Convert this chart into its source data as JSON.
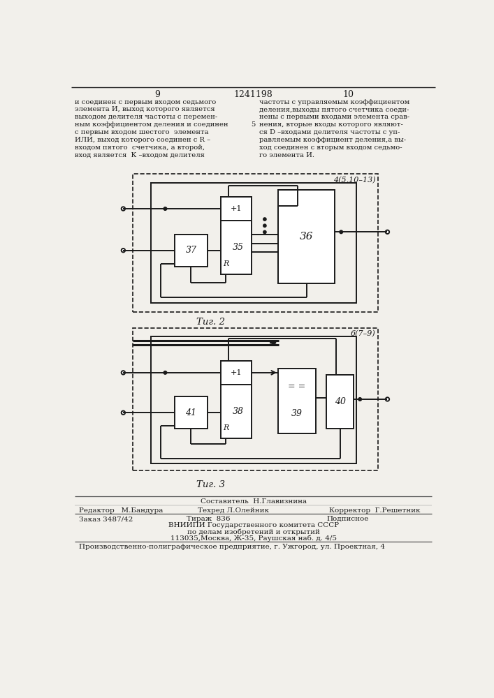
{
  "page_num_left": "9",
  "page_num_center": "1241198",
  "page_num_right": "10",
  "text_left": [
    "и соединен с первым входом седьмого",
    "элемента И, выход которого является",
    "выходом делителя частоты с перемен-",
    "ным коэффициентом деления и соединен",
    "с первым входом шестого  элемента",
    "ИЛИ, выход которого соединен с R –",
    "входом пятого  счетчика, а второй,",
    "вход является  К –входом делителя"
  ],
  "text_right": [
    "частоты с управляемым коэффициентом",
    "деления,выходы пятого счетчика соеди-",
    "нены с первыми входами элемента срав-",
    "нения, вторые входы которого являют-",
    "ся D –входами делителя частоты с уп-",
    "равляемым коэффициент деления,а вы-",
    "ход соединен с вторым входом седьмо-",
    "го элемента И."
  ],
  "line_num_5": "5",
  "fig2_label": "4(5,10–13)",
  "fig2_caption": "Τиг. 2",
  "fig3_label": "6(7–9)",
  "fig3_caption": "Τиг. 3",
  "b35": "35",
  "b36": "36",
  "b37": "37",
  "b38": "38",
  "b39": "39",
  "b40": "40",
  "b41": "41",
  "plus1": "+1",
  "R": "R",
  "eq_sign": "= =",
  "composer": "Составитель  Н.Главизнина",
  "editor": "Редактор   М.Бандура",
  "techred": "Техред Л.Олейник",
  "corrector": "Корректор  Г.Решетник",
  "order": "Заказ 3487/42",
  "tirazh": "Тираж  836",
  "podpisnoe": "Подписное",
  "vnipi1": "ВНИИПИ Государственного комитета СССР",
  "vnipi2": "по делам изобретений и открытий",
  "vnipi3": "113035,Москва, Ж-35, Раушская наб. д. 4/5",
  "production": "Производственно-полиграфическое предприятие, г. Ужгород, ул. Проектная, 4",
  "bg_color": "#f2f0eb",
  "lc": "#1a1a1a"
}
